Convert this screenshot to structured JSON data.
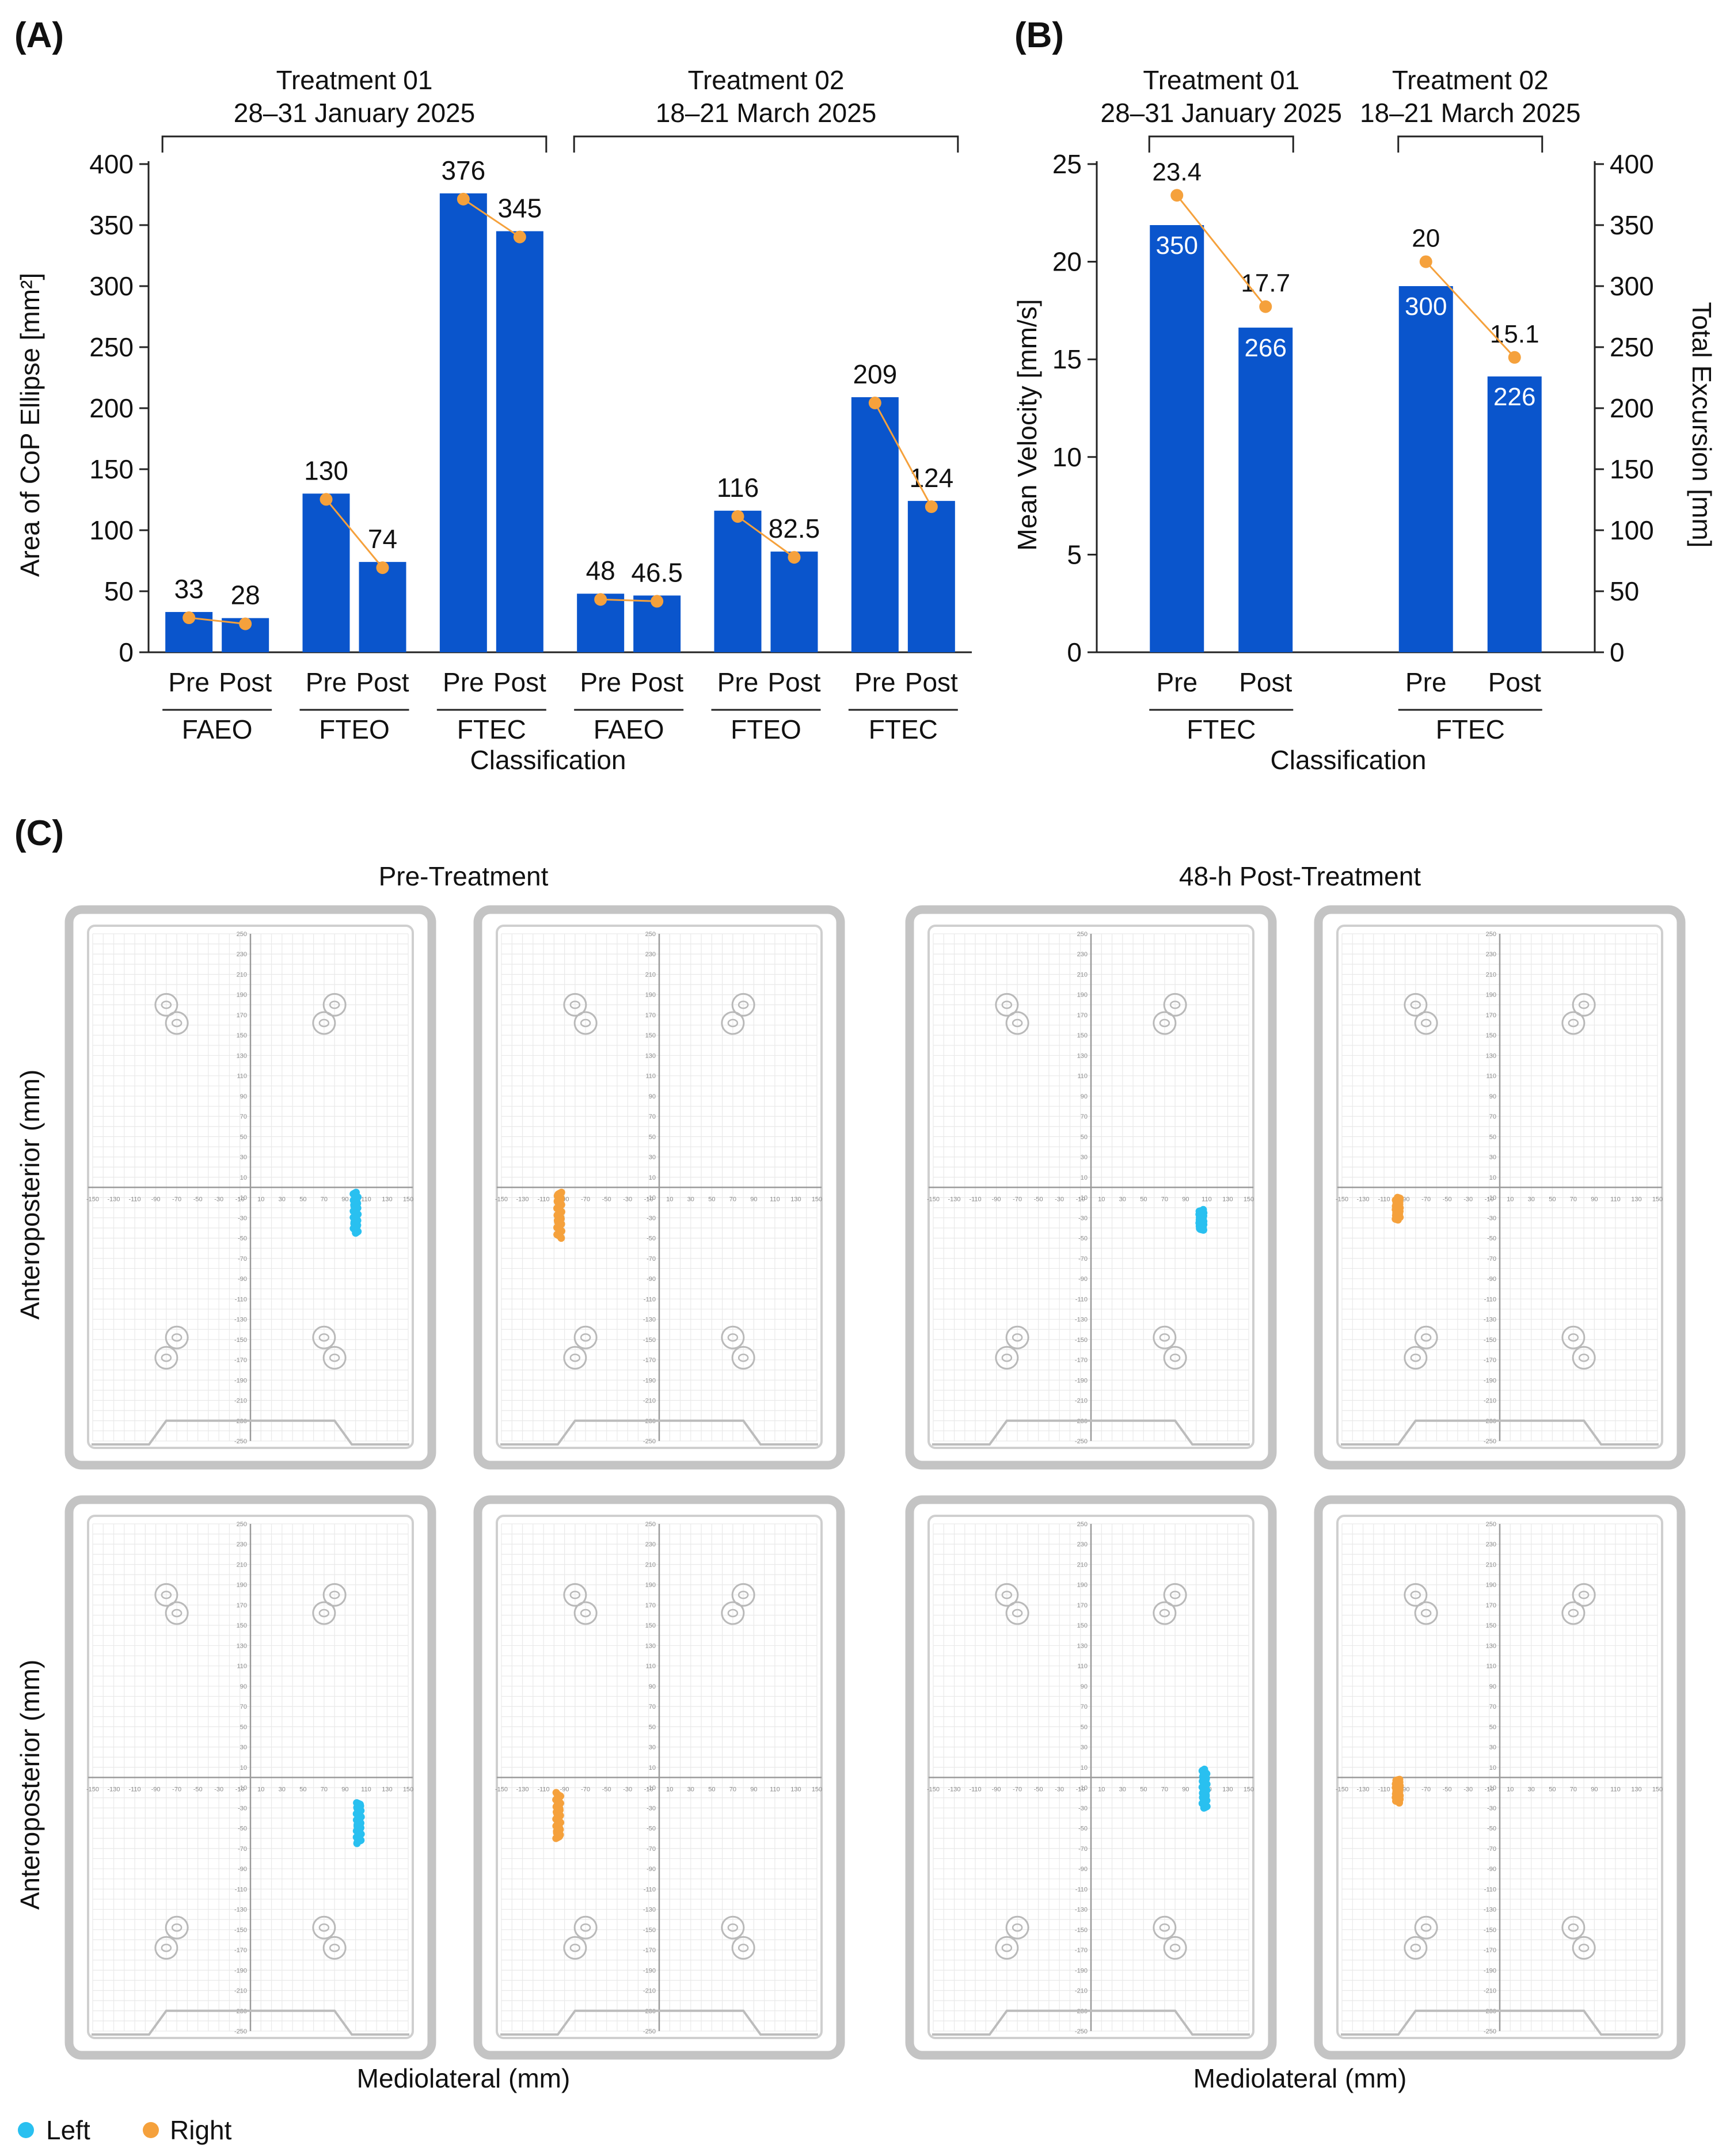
{
  "chart_data": [
    {
      "panel": "(A)",
      "type": "bar",
      "ylabel": "Area of CoP Ellipse [mm²]",
      "xlabel": "Classification",
      "ylim": [
        0,
        400
      ],
      "yticks": [
        0,
        50,
        100,
        150,
        200,
        250,
        300,
        350,
        400
      ],
      "treatments": [
        {
          "name": "Treatment 01",
          "dates": "28–31 January 2025"
        },
        {
          "name": "Treatment 02",
          "dates": "18–21 March 2025"
        }
      ],
      "groups": [
        {
          "treatment": 0,
          "classification": "FAEO",
          "bars": [
            {
              "label": "Pre",
              "value": 33,
              "text": "33"
            },
            {
              "label": "Post",
              "value": 28,
              "text": "28"
            }
          ]
        },
        {
          "treatment": 0,
          "classification": "FTEO",
          "bars": [
            {
              "label": "Pre",
              "value": 130,
              "text": "130"
            },
            {
              "label": "Post",
              "value": 74,
              "text": "74"
            }
          ]
        },
        {
          "treatment": 0,
          "classification": "FTEC",
          "bars": [
            {
              "label": "Pre",
              "value": 376,
              "text": "376"
            },
            {
              "label": "Post",
              "value": 345,
              "text": "345"
            }
          ]
        },
        {
          "treatment": 1,
          "classification": "FAEO",
          "bars": [
            {
              "label": "Pre",
              "value": 48,
              "text": "48"
            },
            {
              "label": "Post",
              "value": 46.5,
              "text": "46.5"
            }
          ]
        },
        {
          "treatment": 1,
          "classification": "FTEO",
          "bars": [
            {
              "label": "Pre",
              "value": 116,
              "text": "116"
            },
            {
              "label": "Post",
              "value": 82.5,
              "text": "82.5"
            }
          ]
        },
        {
          "treatment": 1,
          "classification": "FTEC",
          "bars": [
            {
              "label": "Pre",
              "value": 209,
              "text": "209"
            },
            {
              "label": "Post",
              "value": 124,
              "text": "124"
            }
          ]
        }
      ],
      "colors": {
        "bar": "#0a55cc",
        "line": "#f5a13c"
      }
    },
    {
      "panel": "(B)",
      "type": "bar",
      "ylabel": "Mean Velocity [mm/s]",
      "ylabel_right": "Total Excursion [mm]",
      "xlabel": "Classification",
      "ylim": [
        0,
        25
      ],
      "yticks": [
        0,
        5,
        10,
        15,
        20,
        25
      ],
      "ylim_right": [
        0,
        400
      ],
      "yticks_right": [
        0,
        50,
        100,
        150,
        200,
        250,
        300,
        350,
        400
      ],
      "treatments": [
        {
          "name": "Treatment 01",
          "dates": "28–31 January 2025"
        },
        {
          "name": "Treatment 02",
          "dates": "18–21 March 2025"
        }
      ],
      "groups": [
        {
          "treatment": 0,
          "classification": "FTEC",
          "bars": [
            {
              "label": "Pre",
              "excursion": 350,
              "excursion_text": "350",
              "velocity": 23.4,
              "velocity_text": "23.4"
            },
            {
              "label": "Post",
              "excursion": 266,
              "excursion_text": "266",
              "velocity": 17.7,
              "velocity_text": "17.7"
            }
          ]
        },
        {
          "treatment": 1,
          "classification": "FTEC",
          "bars": [
            {
              "label": "Pre",
              "excursion": 300,
              "excursion_text": "300",
              "velocity": 20,
              "velocity_text": "20"
            },
            {
              "label": "Post",
              "excursion": 226,
              "excursion_text": "226",
              "velocity": 15.1,
              "velocity_text": "15.1"
            }
          ]
        }
      ],
      "colors": {
        "bar": "#0a55cc",
        "line": "#f5a13c",
        "bar_text": "#ffffff"
      }
    },
    {
      "panel": "(C)",
      "type": "scatter",
      "column_titles": [
        "Pre-Treatment",
        "48-h Post-Treatment"
      ],
      "xlabel": "Mediolateral (mm)",
      "ylabel": "Anteroposterior (mm)",
      "xlim": [
        -150,
        150
      ],
      "ylim": [
        -250,
        250
      ],
      "xticks": [
        -150,
        -130,
        -110,
        -90,
        -70,
        -50,
        -30,
        -10,
        10,
        30,
        50,
        70,
        90,
        110,
        130,
        150
      ],
      "yticks": [
        250,
        230,
        210,
        190,
        170,
        150,
        130,
        110,
        90,
        70,
        50,
        30,
        10,
        -10,
        -30,
        -50,
        -70,
        -90,
        -110,
        -130,
        -150,
        -170,
        -190,
        -210,
        -230,
        -250
      ],
      "legend": [
        {
          "label": "Left",
          "color": "#29c0f0"
        },
        {
          "label": "Right",
          "color": "#f5a13c"
        }
      ],
      "plates": [
        {
          "row": 0,
          "col": 0,
          "foot": "Left",
          "x": 100,
          "y_range": [
            -45,
            -5
          ]
        },
        {
          "row": 0,
          "col": 1,
          "foot": "Right",
          "x": -95,
          "y_range": [
            -50,
            -5
          ]
        },
        {
          "row": 0,
          "col": 2,
          "foot": "Left",
          "x": 105,
          "y_range": [
            -42,
            -22
          ]
        },
        {
          "row": 0,
          "col": 3,
          "foot": "Right",
          "x": -97,
          "y_range": [
            -32,
            -10
          ]
        },
        {
          "row": 1,
          "col": 0,
          "foot": "Left",
          "x": 103,
          "y_range": [
            -65,
            -25
          ]
        },
        {
          "row": 1,
          "col": 1,
          "foot": "Right",
          "x": -96,
          "y_range": [
            -60,
            -15
          ]
        },
        {
          "row": 1,
          "col": 2,
          "foot": "Left",
          "x": 108,
          "y_range": [
            -30,
            8
          ]
        },
        {
          "row": 1,
          "col": 3,
          "foot": "Right",
          "x": -97,
          "y_range": [
            -25,
            -2
          ]
        }
      ]
    }
  ]
}
